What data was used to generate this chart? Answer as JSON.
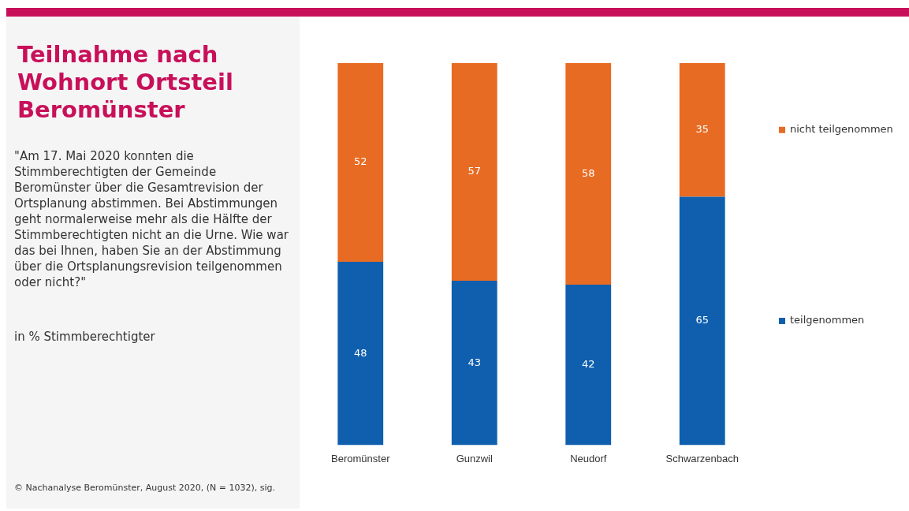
{
  "chart_data": {
    "type": "bar",
    "stacked": true,
    "title": "Teilnahme nach Wohnort Ortsteil Beromünster",
    "subtitle": "\"Am 17. Mai 2020 konnten die Stimmberechtigten der Gemeinde Beromünster über die Gesamtrevision der Ortsplanung abstimmen. Bei Abstimmungen geht normalerweise mehr als die Hälfte der Stimmberechtigten nicht an die Urne. Wie war das bei Ihnen, haben Sie an der Abstimmung über die Ortsplanungsrevision teilgenommen oder nicht?\"",
    "annotations": [
      "in % Stimmberechtigter",
      "© Nachanalyse Beromünster,  August 2020, (N = 1032), sig."
    ],
    "categories": [
      "Beromünster",
      "Gunzwil",
      "Neudorf",
      "Schwarzenbach"
    ],
    "series": [
      {
        "name": "teilgenommen",
        "color": "#0f5fae",
        "values": [
          48,
          43,
          42,
          65
        ]
      },
      {
        "name": "nicht teilgenommen",
        "color": "#e86b23",
        "values": [
          52,
          57,
          58,
          35
        ]
      }
    ],
    "data_labels": true,
    "grid": false,
    "legend": "right"
  }
}
